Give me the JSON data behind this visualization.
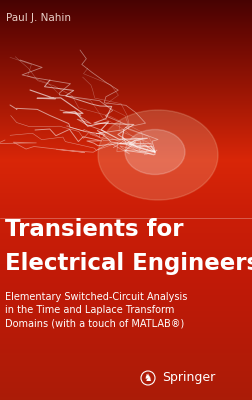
{
  "author": "Paul J. Nahin",
  "title_line1": "Transients for",
  "title_line2": "Electrical Engineers",
  "subtitle_line1": "Elementary Switched-Circuit Analysis",
  "subtitle_line2": "in the Time and Laplace Transform",
  "subtitle_line3": "Domains (with a touch of MATLAB®)",
  "publisher": "Springer",
  "author_color": "#e8d0c8",
  "title_color": "#ffffff",
  "subtitle_color": "#ffffff",
  "publisher_color": "#ffffff",
  "author_fontsize": 7.5,
  "title_fontsize": 16.5,
  "subtitle_fontsize": 7.0,
  "publisher_fontsize": 9.0,
  "fig_width": 2.52,
  "fig_height": 4.0,
  "dpi": 100
}
